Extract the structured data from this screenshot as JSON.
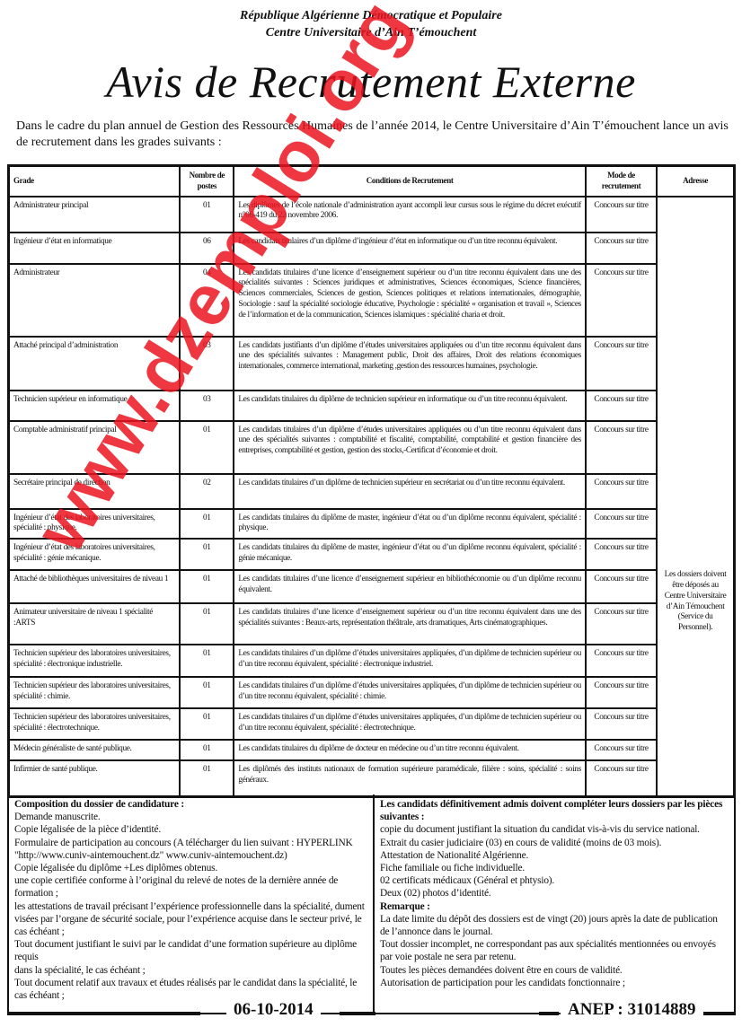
{
  "header": {
    "line1": "République Algérienne Démocratique et Populaire",
    "line2": "Centre Universitaire d’Ain T’émouchent",
    "title": "Avis de Recrutement Externe",
    "intro": "Dans le cadre du plan annuel de Gestion des Ressources Humaines de l’année 2014, le Centre Universitaire d’Ain T’émouchent lance un avis de recrutement dans les grades suivants :"
  },
  "table": {
    "columns": [
      "Grade",
      "Nombre de postes",
      "Conditions de Recrutement",
      "Mode de recrutement",
      "Adresse"
    ],
    "address": "Les dossiers doivent être déposés au Centre Universitaire d’Ain Témouchent (Service du Personnel).",
    "rows": [
      {
        "grade": "Administrateur principal",
        "postes": "01",
        "conditions": "Les diplômes de l’école nationale d’administration ayant accompli leur cursus sous le régime du décret exécutif n°06-419 du 22 novembre 2006.",
        "mode": "Concours sur titre"
      },
      {
        "grade": "Ingénieur d’état en informatique",
        "postes": "06",
        "conditions": "Les candidats titulaires d’un diplôme d’ingénieur d’état en informatique ou d’un titre reconnu équivalent.",
        "mode": "Concours sur titre"
      },
      {
        "grade": "Administrateur",
        "postes": "04",
        "conditions": "Les candidats titulaires d’une licence d’enseignement supérieur ou d’un titre reconnu équivalent dans une des spécialités suivantes : Sciences juridiques et administratives, Sciences économiques, Science financières, Sciences commerciales, Sciences de gestion, Sciences politiques et relations internationales, démographie, Sociologie : sauf la spécialité sociologie éducative, Psychologie : spécialité « organisation et travail », Sciences de l’information et de la communication, Sciences islamiques : spécialité charia et droit.",
        "mode": "Concours sur titre"
      },
      {
        "grade": "Attaché principal d’administration",
        "postes": "03",
        "conditions": "Les candidats justifiants d’un diplôme d’études universitaires appliquées ou d’un titre reconnu équivalent dans une des spécialités suivantes : Management public, Droit des affaires, Droit des relations économiques internationales, commerce international, marketing ,gestion des ressources humaines, psychologie.",
        "mode": "Concours sur titre"
      },
      {
        "grade": "Technicien supérieur en informatique",
        "postes": "03",
        "conditions": "Les candidats titulaires du diplôme de technicien supérieur en informatique ou d’un titre reconnu équivalent.",
        "mode": "Concours sur titre"
      },
      {
        "grade": "Comptable administratif principal",
        "postes": "01",
        "conditions": "Les candidats titulaires d’un diplôme d’études universitaires appliquées ou d’un titre reconnu équivalent dans une des spécialités suivantes : comptabilité et fiscalité, comptabilité, comptabilité et gestion financière des entreprises, comptabilité et gestion, gestion des stocks,-Certificat d’économie et droit.",
        "mode": "Concours sur titre"
      },
      {
        "grade": "Secrétaire principal de direction",
        "postes": "02",
        "conditions": "Les candidats titulaires d’un diplôme de technicien supérieur en secrétariat ou d’un titre reconnu équivalent.",
        "mode": "Concours sur titre"
      },
      {
        "grade": "Ingénieur d’état des laboratoires universitaires, spécialité : physique.",
        "postes": "01",
        "conditions": "Les candidats titulaires du diplôme de master, ingénieur d’état ou d’un diplôme reconnu équivalent, spécialité : physique.",
        "mode": "Concours sur titre"
      },
      {
        "grade": "Ingénieur d’état des laboratoires universitaires, spécialité : génie mécanique.",
        "postes": "01",
        "conditions": "Les candidats titulaires du diplôme de master, ingénieur d’état ou d’un diplôme reconnu équivalent, spécialité : génie mécanique.",
        "mode": "Concours sur titre"
      },
      {
        "grade": "Attaché de bibliothèques universitaires de niveau 1",
        "postes": "01",
        "conditions": "Les candidats titulaires d’une licence d’enseignement supérieur en bibliothéconomie ou d’un diplôme reconnu équivalent.",
        "mode": "Concours sur titre"
      },
      {
        "grade": "Animateur universitaire de niveau 1 spécialité :ARTS",
        "postes": "01",
        "conditions": "Les candidats titulaires d’une licence d’enseignement supérieur ou d’un titre reconnu équivalent dans une des spécialités suivantes : Beaux-arts, représentation théâtrale, arts dramatiques, Arts cinématographiques.",
        "mode": "Concours sur titre"
      },
      {
        "grade": "Technicien supérieur des laboratoires universitaires, spécialité : électronique industrielle.",
        "postes": "01",
        "conditions": "Les candidats titulaires d’un diplôme d’études universitaires appliquées, d’un diplôme de technicien supérieur ou d’un titre reconnu équivalent, spécialité : électronique industriel.",
        "mode": "Concours sur titre"
      },
      {
        "grade": "Technicien supérieur des laboratoires universitaires, spécialité : chimie.",
        "postes": "01",
        "conditions": "Les candidats titulaires d’un diplôme d’études universitaires appliquées, d’un diplôme de technicien supérieur ou d’un titre reconnu équivalent, spécialité : chimie.",
        "mode": "Concours sur titre"
      },
      {
        "grade": "Technicien supérieur des laboratoires universitaires, spécialité : électrotechnique.",
        "postes": "01",
        "conditions": "Les candidats titulaires d’un diplôme d’études universitaires appliquées, d’un diplôme de technicien supérieur ou d’un titre reconnu équivalent, spécialité : électrotechnique.",
        "mode": "Concours sur titre"
      },
      {
        "grade": "Médecin généraliste de santé publique.",
        "postes": "01",
        "conditions": "Les candidats titulaires du diplôme de docteur en médecine ou d’un titre reconnu équivalent.",
        "mode": "Concours sur titre"
      },
      {
        "grade": "Infirmier de santé publique.",
        "postes": "01",
        "conditions": "Les diplômés des instituts nationaux de formation supérieure paramédicale, filière : soins, spécialité : soins généraux.",
        "mode": "Concours sur titre"
      }
    ]
  },
  "dossier": {
    "heading": "Composition du dossier de candidature :",
    "items": [
      "Demande manuscrite.",
      "Copie légalisée de la pièce d’identité.",
      "Formulaire de participation au concours (A télécharger du lien suivant : HYPERLINK \"http://www.cuniv-aintemouchent.dz\" www.cuniv-aintemouchent.dz)",
      " Copie légalisée du diplôme +Les diplômes obtenus.",
      "une copie certifiée conforme à l’original du relevé de notes de la dernière année de formation ;",
      "les attestations de travail précisant l’expérience professionnelle dans la spécialité, dument visées par l’organe de sécurité sociale, pour l’expérience acquise dans le secteur privé, le cas échéant ;",
      "Tout document justifiant le suivi par le candidat d’une formation supérieure au diplôme requis",
      "dans la spécialité, le cas échéant ;",
      "Tout document relatif aux travaux et études réalisés par le candidat dans la spécialité, le cas échéant ;"
    ]
  },
  "admis": {
    "heading": "Les candidats définitivement admis doivent compléter leurs dossiers par les pièces suivantes :",
    "items": [
      "copie du document justifiant la situation du candidat vis-à-vis du service national.",
      "Extrait du casier judiciaire (03) en cours de validité (moins de 03 mois).",
      "Attestation de Nationalité Algérienne.",
      "Fiche familiale ou fiche individuelle.",
      "02 certificats médicaux (Général et phtysio).",
      "Deux (02) photos d’identité."
    ],
    "remarque_heading": "Remarque :",
    "remarques": [
      "La date limite du dépôt des dossiers est de vingt (20) jours après la date de publication de l’annonce dans le journal.",
      "Tout dossier incomplet, ne correspondant pas aux spécialités mentionnées ou envoyés par voie postale ne sera par retenu.",
      "Toutes les pièces demandées doivent être en cours de validité.",
      "Autorisation de participation pour les candidats fonctionnaire ;"
    ]
  },
  "footer": {
    "date": "06-10-2014",
    "anep": "ANEP : 31014889"
  },
  "watermark": {
    "text": "www.dzemploi.org",
    "color": "#e8141e"
  }
}
